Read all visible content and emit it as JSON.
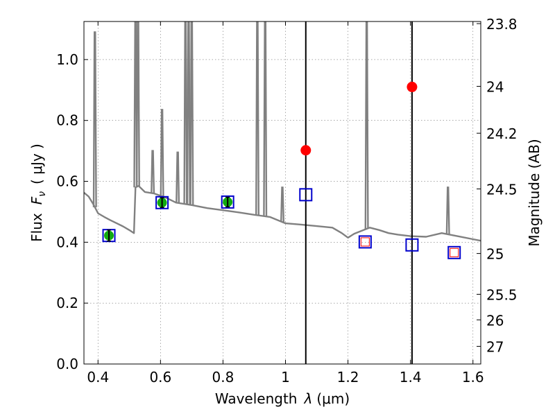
{
  "chart_data": {
    "type": "scatter",
    "xlabel": "Wavelength",
    "xlabel_symbol": "λ",
    "xlabel_unit": "(μm)",
    "ylabel": "Flux",
    "ylabel_symbol": "F",
    "ylabel_symbol_sub": "ν",
    "ylabel_unit": "( μJy )",
    "y2label": "Magnitude (AB)",
    "xlim": [
      0.355,
      1.625
    ],
    "ylim": [
      0.0,
      1.125
    ],
    "grid": true,
    "xticks": [
      {
        "value": 0.4,
        "label": "0.4"
      },
      {
        "value": 0.6,
        "label": "0.6"
      },
      {
        "value": 0.8,
        "label": "0.8"
      },
      {
        "value": 1.0,
        "label": "1"
      },
      {
        "value": 1.2,
        "label": "1.2"
      },
      {
        "value": 1.4,
        "label": "1.4"
      },
      {
        "value": 1.6,
        "label": "1.6"
      }
    ],
    "yticks": [
      {
        "value": 0.0,
        "label": "0.0"
      },
      {
        "value": 0.2,
        "label": "0.2"
      },
      {
        "value": 0.4,
        "label": "0.4"
      },
      {
        "value": 0.6,
        "label": "0.6"
      },
      {
        "value": 0.8,
        "label": "0.8"
      },
      {
        "value": 1.0,
        "label": "1.0"
      }
    ],
    "y2ticks": [
      {
        "flux": 1.118,
        "label": "23.8"
      },
      {
        "flux": 0.912,
        "label": "24"
      },
      {
        "flux": 0.758,
        "label": "24.2"
      },
      {
        "flux": 0.575,
        "label": "24.5"
      },
      {
        "flux": 0.363,
        "label": "25"
      },
      {
        "flux": 0.229,
        "label": "25.5"
      },
      {
        "flux": 0.145,
        "label": "26"
      },
      {
        "flux": 0.058,
        "label": "27"
      }
    ],
    "vertical_lines": [
      1.065,
      1.405
    ],
    "series": [
      {
        "name": "model spectrum continuum",
        "style": "line",
        "color": "#808080",
        "x": [
          0.355,
          0.37,
          0.385,
          0.4,
          0.42,
          0.44,
          0.46,
          0.48,
          0.5,
          0.515,
          0.52,
          0.53,
          0.55,
          0.58,
          0.6,
          0.62,
          0.65,
          0.7,
          0.75,
          0.8,
          0.85,
          0.9,
          0.95,
          1.0,
          1.05,
          1.1,
          1.15,
          1.18,
          1.2,
          1.22,
          1.25,
          1.27,
          1.3,
          1.33,
          1.36,
          1.4,
          1.45,
          1.5,
          1.55,
          1.6,
          1.625
        ],
        "y": [
          0.563,
          0.55,
          0.525,
          0.495,
          0.483,
          0.472,
          0.462,
          0.452,
          0.44,
          0.43,
          0.58,
          0.585,
          0.565,
          0.56,
          0.553,
          0.545,
          0.53,
          0.522,
          0.512,
          0.505,
          0.498,
          0.49,
          0.483,
          0.462,
          0.458,
          0.453,
          0.448,
          0.43,
          0.415,
          0.428,
          0.44,
          0.448,
          0.44,
          0.43,
          0.425,
          0.42,
          0.418,
          0.43,
          0.42,
          0.41,
          0.405
        ]
      },
      {
        "name": "emission lines",
        "style": "spikes",
        "color": "#808080",
        "lines": [
          {
            "x": 0.39,
            "peak": 1.09
          },
          {
            "x": 0.52,
            "peak": 1.13
          },
          {
            "x": 0.528,
            "peak": 1.13
          },
          {
            "x": 0.575,
            "peak": 0.7
          },
          {
            "x": 0.605,
            "peak": 0.835
          },
          {
            "x": 0.655,
            "peak": 0.695
          },
          {
            "x": 0.68,
            "peak": 1.13
          },
          {
            "x": 0.69,
            "peak": 1.13
          },
          {
            "x": 0.7,
            "peak": 1.13
          },
          {
            "x": 0.91,
            "peak": 1.13
          },
          {
            "x": 0.935,
            "peak": 1.13
          },
          {
            "x": 0.99,
            "peak": 0.58
          },
          {
            "x": 1.26,
            "peak": 1.13
          },
          {
            "x": 1.52,
            "peak": 0.58
          }
        ]
      },
      {
        "name": "model bandpass fluxes",
        "style": "open-square",
        "color": "#0000cc",
        "x": [
          0.435,
          0.605,
          0.815,
          1.065,
          1.255,
          1.405,
          1.54
        ],
        "y": [
          0.422,
          0.53,
          0.532,
          0.556,
          0.401,
          0.391,
          0.366
        ]
      },
      {
        "name": "observed optical photometry",
        "style": "filled-circle-errorbar",
        "color": "#11aa11",
        "x": [
          0.435,
          0.605,
          0.815
        ],
        "y": [
          0.422,
          0.53,
          0.532
        ],
        "yerr": [
          0.018,
          0.016,
          0.016
        ]
      },
      {
        "name": "observed NIR photometry",
        "style": "filled-circle",
        "color": "#ff0000",
        "x": [
          1.065,
          1.405
        ],
        "y": [
          0.702,
          0.91
        ]
      },
      {
        "name": "upper limits",
        "style": "small-open-square",
        "color": "#ff0000",
        "x": [
          1.255,
          1.54
        ],
        "y": [
          0.401,
          0.366
        ]
      }
    ]
  }
}
